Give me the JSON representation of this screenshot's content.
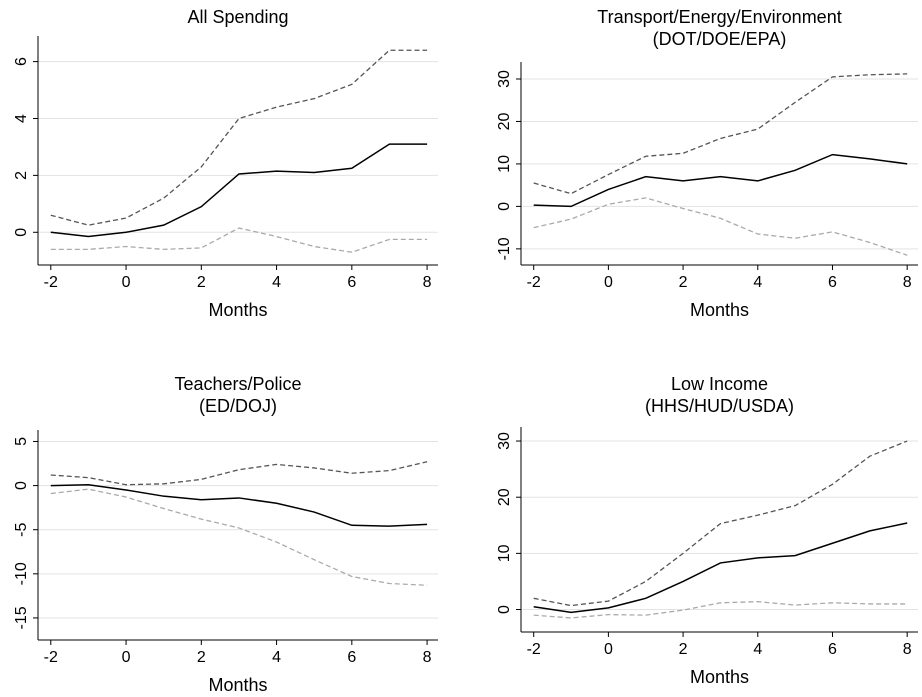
{
  "chart_data": [
    {
      "type": "line",
      "title": [
        "All Spending"
      ],
      "xlabel": "Months",
      "x": [
        -2,
        -1,
        0,
        1,
        2,
        3,
        4,
        5,
        6,
        7,
        8
      ],
      "xlim": [
        -2.34,
        8.29
      ],
      "xticks": [
        -2,
        0,
        2,
        4,
        6,
        8
      ],
      "ylim": [
        -1.15,
        6.9
      ],
      "yticks": [
        0,
        2,
        4,
        6
      ],
      "grid": true,
      "series": [
        {
          "color": "#000000",
          "dash": false,
          "values": [
            0,
            -0.15,
            0,
            0.25,
            0.9,
            2.05,
            2.15,
            2.1,
            2.25,
            3.1,
            3.1
          ]
        },
        {
          "color": "#555555",
          "dash": true,
          "values": [
            0.6,
            0.25,
            0.5,
            1.2,
            2.3,
            4.0,
            4.4,
            4.7,
            5.2,
            6.4,
            6.4
          ]
        },
        {
          "color": "#aaaaaa",
          "dash": true,
          "values": [
            -0.6,
            -0.6,
            -0.5,
            -0.6,
            -0.55,
            0.15,
            -0.15,
            -0.5,
            -0.7,
            -0.25,
            -0.25
          ]
        }
      ]
    },
    {
      "type": "line",
      "title": [
        "Transport/Energy/Environment",
        "(DOT/DOE/EPA)"
      ],
      "xlabel": "Months",
      "x": [
        -2,
        -1,
        0,
        1,
        2,
        3,
        4,
        5,
        6,
        7,
        8
      ],
      "xlim": [
        -2.34,
        8.29
      ],
      "xticks": [
        -2,
        0,
        2,
        4,
        6,
        8
      ],
      "ylim": [
        -13.8,
        34
      ],
      "yticks": [
        -10,
        0,
        10,
        20,
        30
      ],
      "grid": true,
      "series": [
        {
          "color": "#000000",
          "dash": false,
          "values": [
            0.3,
            0,
            4,
            7,
            6,
            7,
            6,
            8.5,
            12.2,
            11.2,
            10
          ]
        },
        {
          "color": "#555555",
          "dash": true,
          "values": [
            5.5,
            3,
            7.5,
            11.8,
            12.5,
            16,
            18.2,
            24.5,
            30.5,
            31,
            31.2
          ]
        },
        {
          "color": "#aaaaaa",
          "dash": true,
          "values": [
            -5,
            -3,
            0.5,
            2,
            -0.5,
            -2.8,
            -6.5,
            -7.5,
            -6,
            -8.5,
            -11.5
          ]
        }
      ]
    },
    {
      "type": "line",
      "title": [
        "Teachers/Police",
        "(ED/DOJ)"
      ],
      "xlabel": "Months",
      "x": [
        -2,
        -1,
        0,
        1,
        2,
        3,
        4,
        5,
        6,
        7,
        8
      ],
      "xlim": [
        -2.34,
        8.29
      ],
      "xticks": [
        -2,
        0,
        2,
        4,
        6,
        8
      ],
      "ylim": [
        -17.5,
        6.3
      ],
      "yticks": [
        -15,
        -10,
        -5,
        0,
        5
      ],
      "grid": true,
      "series": [
        {
          "color": "#000000",
          "dash": false,
          "values": [
            0,
            0.1,
            -0.5,
            -1.2,
            -1.6,
            -1.4,
            -2,
            -3,
            -4.5,
            -4.6,
            -4.4
          ]
        },
        {
          "color": "#555555",
          "dash": true,
          "values": [
            1.2,
            0.9,
            0.1,
            0.2,
            0.7,
            1.8,
            2.4,
            2.0,
            1.4,
            1.7,
            2.7
          ]
        },
        {
          "color": "#aaaaaa",
          "dash": true,
          "values": [
            -0.9,
            -0.4,
            -1.3,
            -2.6,
            -3.8,
            -4.8,
            -6.4,
            -8.4,
            -10.3,
            -11.1,
            -11.3
          ]
        }
      ]
    },
    {
      "type": "line",
      "title": [
        "Low Income",
        "(HHS/HUD/USDA)"
      ],
      "xlabel": "Months",
      "x": [
        -2,
        -1,
        0,
        1,
        2,
        3,
        4,
        5,
        6,
        7,
        8
      ],
      "xlim": [
        -2.34,
        8.29
      ],
      "xticks": [
        -2,
        0,
        2,
        4,
        6,
        8
      ],
      "ylim": [
        -4,
        32.5
      ],
      "yticks": [
        0,
        10,
        20,
        30
      ],
      "grid": true,
      "series": [
        {
          "color": "#000000",
          "dash": false,
          "values": [
            0.5,
            -0.5,
            0.3,
            2,
            5,
            8.3,
            9.2,
            9.6,
            11.8,
            14,
            15.4
          ]
        },
        {
          "color": "#555555",
          "dash": true,
          "values": [
            2,
            0.7,
            1.5,
            5,
            10,
            15.3,
            16.8,
            18.5,
            22.3,
            27.3,
            30
          ]
        },
        {
          "color": "#aaaaaa",
          "dash": true,
          "values": [
            -1,
            -1.5,
            -0.9,
            -1,
            -0.1,
            1.2,
            1.4,
            0.8,
            1.2,
            1,
            1
          ]
        }
      ]
    }
  ]
}
